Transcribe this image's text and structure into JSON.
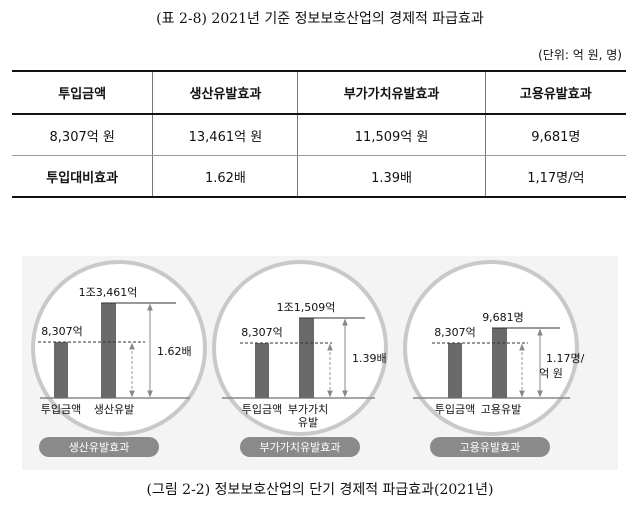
{
  "table": {
    "caption": "(표 2-8) 2021년 기준 정보보호산업의 경제적 파급효과",
    "unit": "(단위: 억 원, 명)",
    "headers": [
      "투입금액",
      "생산유발효과",
      "부가가치유발효과",
      "고용유발효과"
    ],
    "rows": [
      [
        "8,307억 원",
        "13,461억 원",
        "11,509억 원",
        "9,681명"
      ],
      [
        "투입대비효과",
        "1.62배",
        "1.39배",
        "1,17명/억"
      ]
    ]
  },
  "figure": {
    "caption": "(그림 2-2) 정보보호산업의 단기 경제적 파급효과(2021년)",
    "panels": [
      {
        "title": "생산유발효과",
        "input_value": "8,307억",
        "effect_value": "1조3,461억",
        "input_label": "투입금액",
        "effect_label": "생산유발",
        "ratio_label": "1.62배"
      },
      {
        "title": "부가가치유발효과",
        "input_value": "8,307억",
        "effect_value": "1조1,509억",
        "input_label": "투입금액",
        "effect_label": "부가가치",
        "effect_label_2": "유발",
        "ratio_label": "1.39배"
      },
      {
        "title": "고용유발효과",
        "input_value": "8,307억",
        "effect_value": "9,681명",
        "input_label": "투입금액",
        "effect_label": "고용유발",
        "ratio_label": "1.17명/",
        "ratio_label_2": "억 원"
      }
    ]
  }
}
